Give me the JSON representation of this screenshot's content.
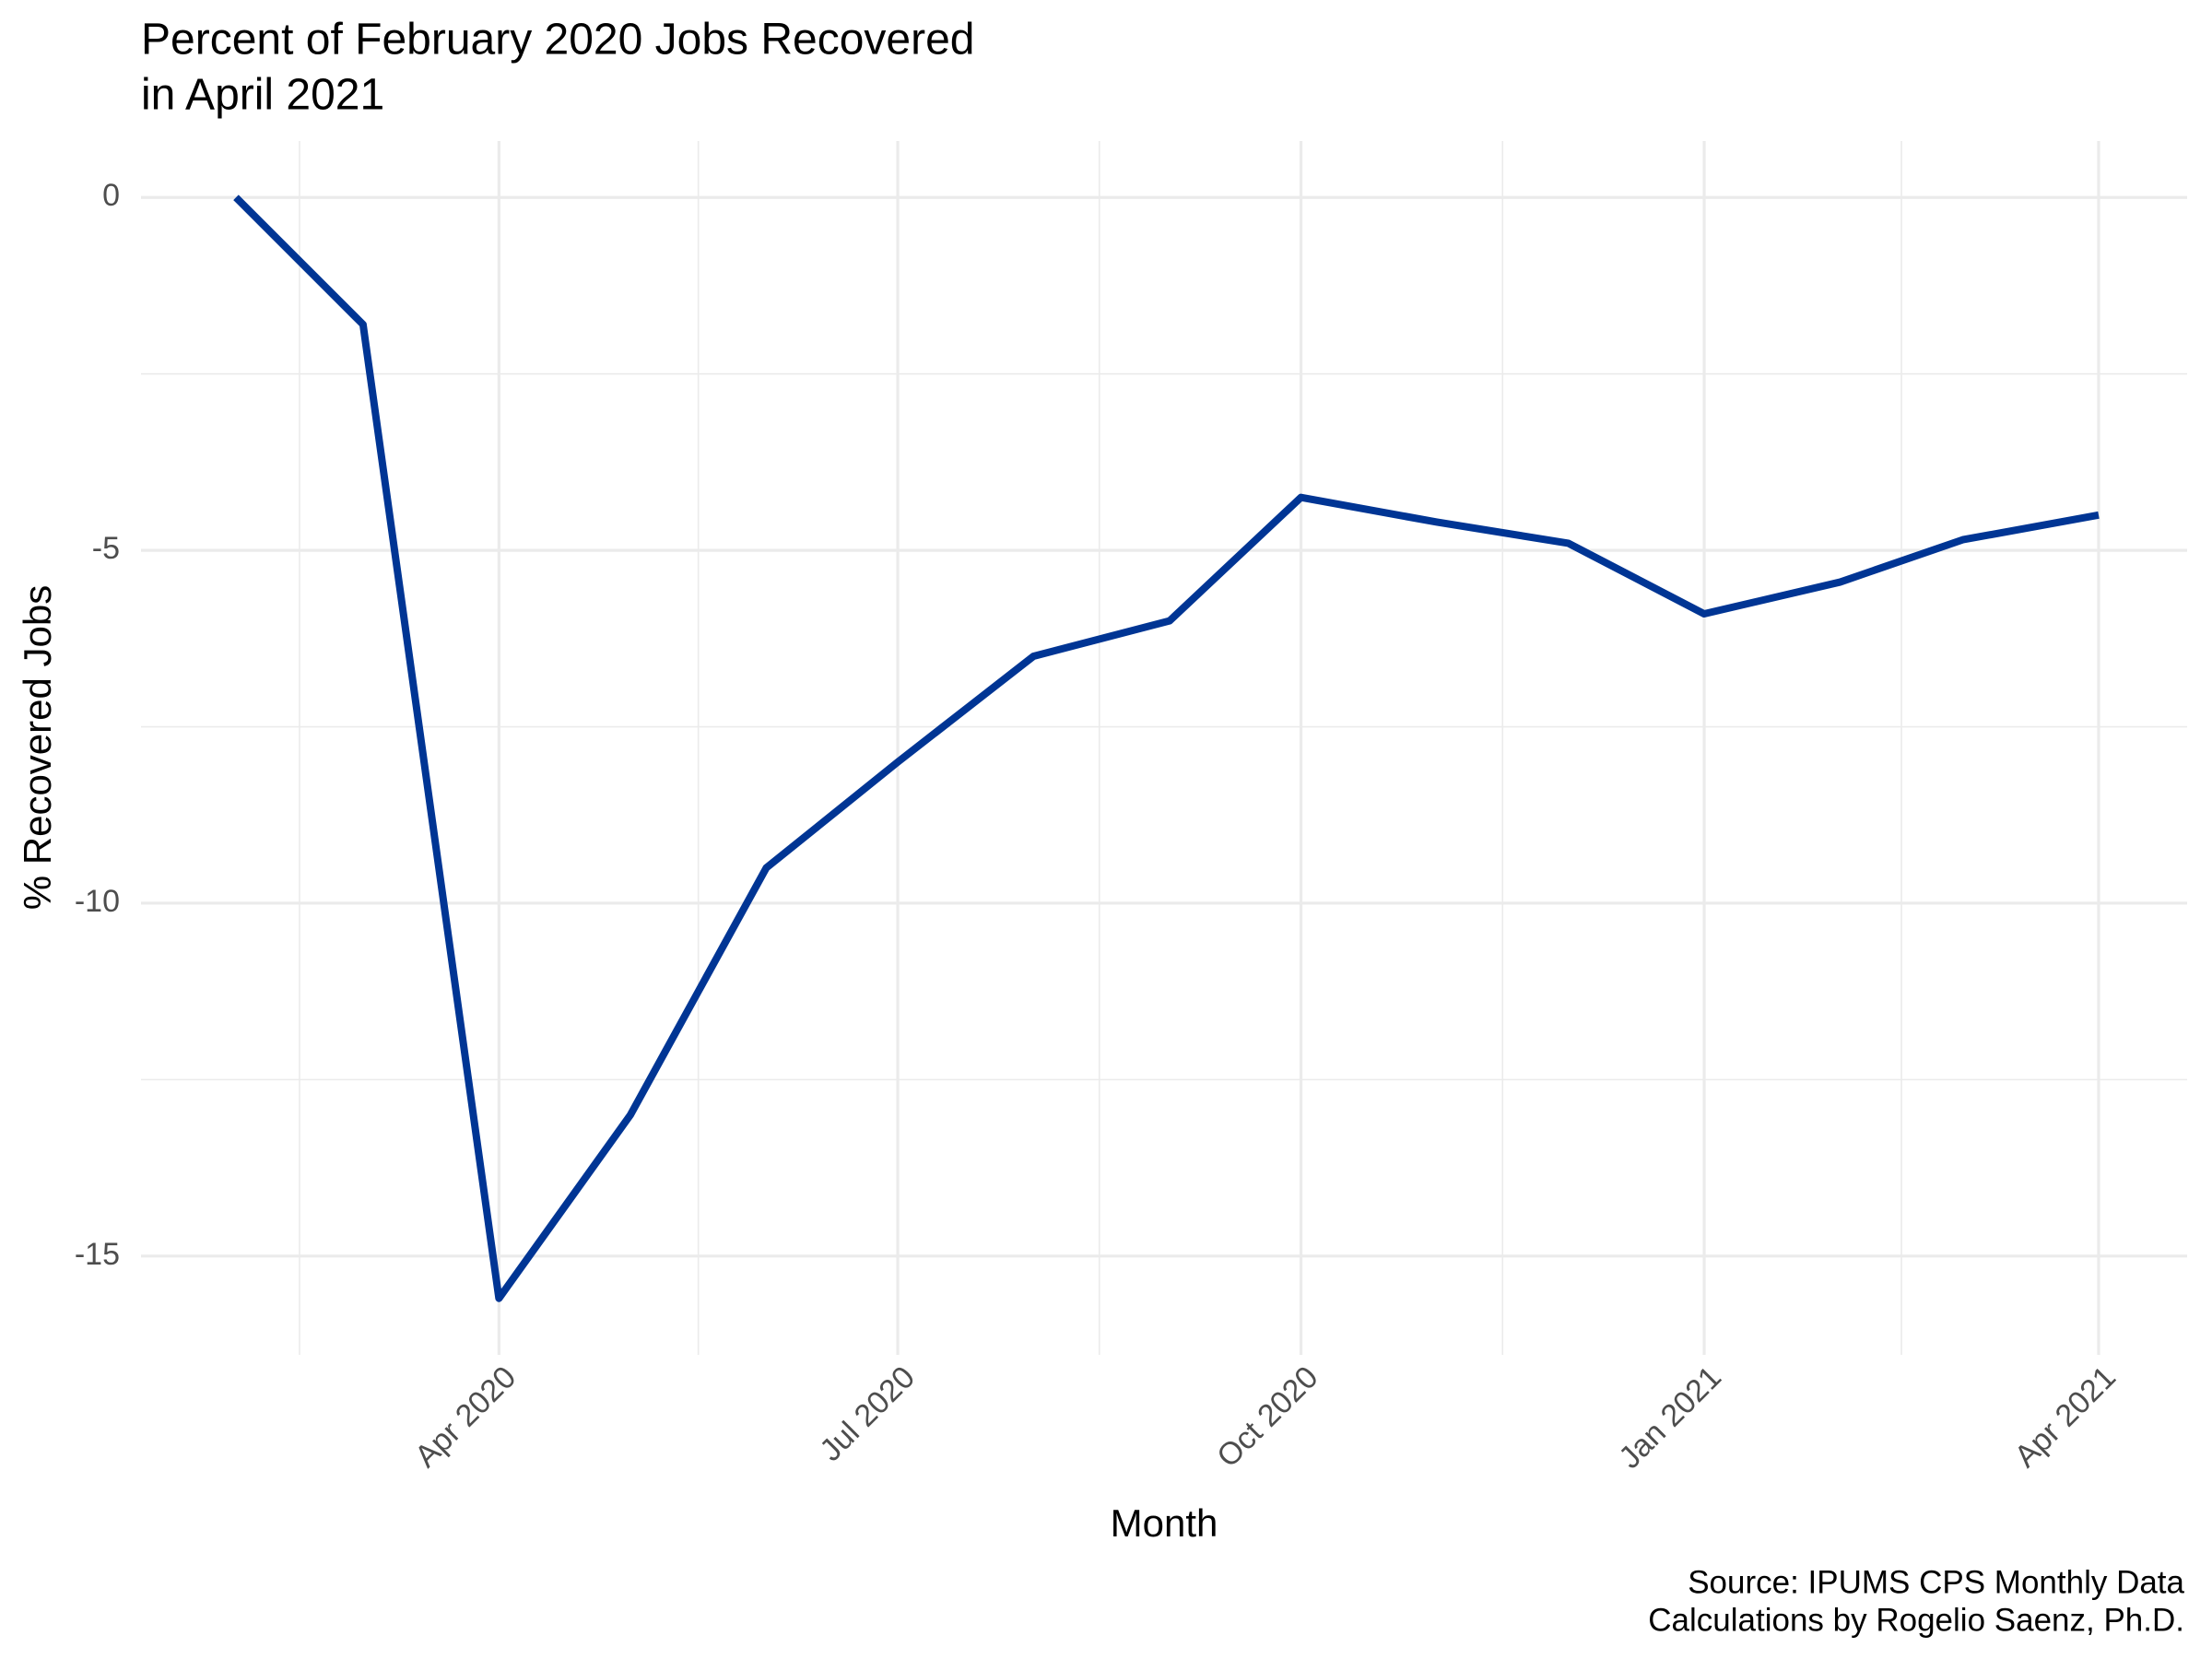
{
  "chart_data": {
    "type": "line",
    "title": [
      "Percent of February 2020 Jobs Recovered",
      "in April 2021"
    ],
    "x_label": "Month",
    "y_label": "% Recovered Jobs",
    "caption": [
      "Source: IPUMS CPS Monthly Data",
      "Calculations by Rogelio Saenz, Ph.D."
    ],
    "x": [
      "2020-02",
      "2020-03",
      "2020-04",
      "2020-05",
      "2020-06",
      "2020-07",
      "2020-08",
      "2020-09",
      "2020-10",
      "2020-11",
      "2020-12",
      "2021-01",
      "2021-02",
      "2021-03",
      "2021-04"
    ],
    "series": [
      {
        "name": "% Recovered Jobs",
        "color": "#003594",
        "values": [
          0,
          -1.8,
          -15.6,
          -13.0,
          -9.5,
          -8.0,
          -6.5,
          -6.0,
          -4.25,
          -4.6,
          -4.9,
          -5.9,
          -5.45,
          -4.85,
          -4.5
        ]
      }
    ],
    "xlim": [
      "2020-02",
      "2021-04"
    ],
    "xticks": [
      {
        "value": "2020-04",
        "label": "Apr 2020"
      },
      {
        "value": "2020-07",
        "label": "Jul 2020"
      },
      {
        "value": "2020-10",
        "label": "Oct 2020"
      },
      {
        "value": "2021-01",
        "label": "Jan 2021"
      },
      {
        "value": "2021-04",
        "label": "Apr 2021"
      }
    ],
    "ylim": [
      -16.4,
      0.8
    ],
    "yticks": [
      0,
      -5,
      -10,
      -15
    ],
    "grid": true
  }
}
